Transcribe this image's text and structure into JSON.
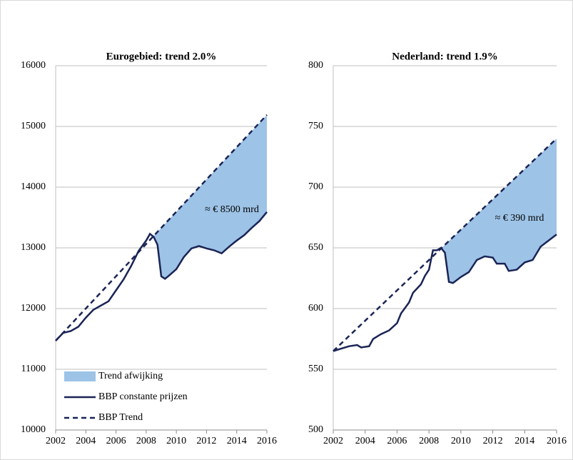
{
  "chart_data": [
    {
      "type": "line",
      "title": "Eurogebied: trend 2.0%",
      "annotation": "≈ € 8500 mrd",
      "xlim": [
        2002,
        2016
      ],
      "xticks": [
        2002,
        2004,
        2006,
        2008,
        2010,
        2012,
        2014,
        2016
      ],
      "ylim": [
        10000,
        16000
      ],
      "yticks": [
        10000,
        11000,
        12000,
        13000,
        14000,
        15000,
        16000
      ],
      "grid": true,
      "legend": "lower left",
      "series": [
        {
          "name": "Trend afwijking",
          "type": "area",
          "color": "#9dc3e6"
        },
        {
          "name": "BBP constante prijzen",
          "color": "#1a2456",
          "x": [
            2002,
            2002.5,
            2003,
            2003.5,
            2004,
            2004.5,
            2005,
            2005.5,
            2006,
            2006.5,
            2007,
            2007.5,
            2008,
            2008.25,
            2008.5,
            2008.75,
            2009,
            2009.25,
            2009.5,
            2010,
            2010.5,
            2011,
            2011.5,
            2012,
            2012.5,
            2013,
            2013.5,
            2014,
            2014.5,
            2015,
            2015.5,
            2016
          ],
          "values": [
            11470,
            11600,
            11630,
            11700,
            11850,
            11980,
            12050,
            12120,
            12300,
            12480,
            12700,
            12950,
            13120,
            13230,
            13180,
            13050,
            12530,
            12490,
            12540,
            12650,
            12850,
            12990,
            13030,
            12990,
            12960,
            12910,
            13020,
            13120,
            13210,
            13330,
            13440,
            13590
          ]
        },
        {
          "name": "BBP Trend",
          "color": "#1a2456",
          "dashed": true,
          "x": [
            2002,
            2016
          ],
          "values": [
            11470,
            15190
          ]
        }
      ]
    },
    {
      "type": "line",
      "title": "Nederland: trend 1.9%",
      "annotation": "≈ € 390 mrd",
      "xlim": [
        2002,
        2016
      ],
      "xticks": [
        2002,
        2004,
        2006,
        2008,
        2010,
        2012,
        2014,
        2016
      ],
      "ylim": [
        500,
        800
      ],
      "yticks": [
        500,
        550,
        600,
        650,
        700,
        750,
        800
      ],
      "grid": true,
      "series": [
        {
          "type": "area",
          "color": "#9dc3e6"
        },
        {
          "color": "#1a2456",
          "x": [
            2002,
            2002.5,
            2003,
            2003.5,
            2003.75,
            2004.25,
            2004.5,
            2005,
            2005.5,
            2006,
            2006.25,
            2006.75,
            2007,
            2007.5,
            2007.75,
            2008,
            2008.25,
            2008.5,
            2008.75,
            2009,
            2009.25,
            2009.5,
            2010,
            2010.5,
            2011,
            2011.5,
            2012,
            2012.25,
            2012.75,
            2013,
            2013.5,
            2014,
            2014.5,
            2015,
            2015.5,
            2016
          ],
          "values": [
            565,
            567,
            569,
            570,
            568,
            569,
            575,
            579,
            582,
            588,
            596,
            605,
            613,
            620,
            627,
            632,
            648,
            648,
            650,
            646,
            622,
            621,
            626,
            630,
            640,
            643,
            642,
            637,
            637,
            631,
            632,
            638,
            640,
            651,
            656,
            661
          ]
        },
        {
          "color": "#1a2456",
          "dashed": true,
          "x": [
            2002,
            2016
          ],
          "values": [
            565,
            740
          ]
        }
      ]
    }
  ]
}
